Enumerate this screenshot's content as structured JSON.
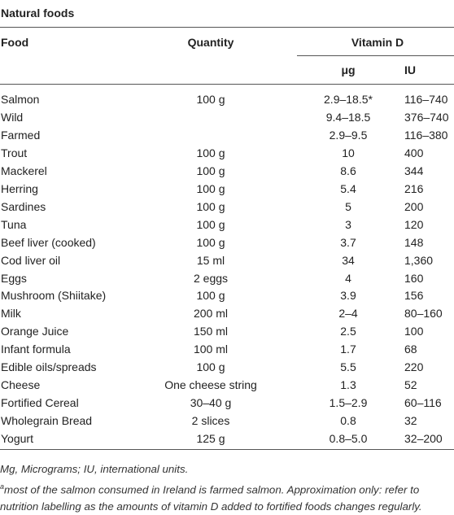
{
  "table": {
    "title": "Natural foods",
    "header": {
      "food": "Food",
      "quantity": "Quantity",
      "group": "Vitamin D",
      "ug": "μg",
      "iu": "IU"
    },
    "rows": [
      [
        "Salmon",
        "100 g",
        "2.9–18.5*",
        "116–740"
      ],
      [
        "Wild",
        "",
        "9.4–18.5",
        "376–740"
      ],
      [
        "Farmed",
        "",
        "2.9–9.5",
        "116–380"
      ],
      [
        "Trout",
        "100 g",
        "10",
        "400"
      ],
      [
        "Mackerel",
        "100 g",
        "8.6",
        "344"
      ],
      [
        "Herring",
        "100 g",
        "5.4",
        "216"
      ],
      [
        "Sardines",
        "100 g",
        "5",
        "200"
      ],
      [
        "Tuna",
        "100 g",
        "3",
        "120"
      ],
      [
        "Beef liver (cooked)",
        "100 g",
        "3.7",
        "148"
      ],
      [
        "Cod liver oil",
        "15 ml",
        "34",
        "1,360"
      ],
      [
        "Eggs",
        "2 eggs",
        "4",
        "160"
      ],
      [
        "Mushroom (Shiitake)",
        "100 g",
        "3.9",
        "156"
      ],
      [
        "Milk",
        "200 ml",
        "2–4",
        "80–160"
      ],
      [
        "Orange Juice",
        "150 ml",
        "2.5",
        "100"
      ],
      [
        "Infant formula",
        "100 ml",
        "1.7",
        "68"
      ],
      [
        "Edible oils/spreads",
        "100 g",
        "5.5",
        "220"
      ],
      [
        "Cheese",
        "One cheese string",
        "1.3",
        "52"
      ],
      [
        "Fortified Cereal",
        "30–40 g",
        "1.5–2.9",
        "60–116"
      ],
      [
        "Wholegrain Bread",
        "2 slices",
        "0.8",
        "32"
      ],
      [
        "Yogurt",
        "125 g",
        "0.8–5.0",
        "32–200"
      ]
    ],
    "footnotes": {
      "abbreviations": "Mg, Micrograms; IU, international units.",
      "marker": "a",
      "note": "most of the salmon consumed in Ireland is farmed salmon. Approximation only: refer to nutrition labelling as the amounts of vitamin D added to fortified foods changes regularly."
    }
  }
}
